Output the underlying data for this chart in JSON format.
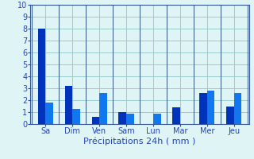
{
  "bar_data": [
    {
      "day": "Sa",
      "v1": 8.0,
      "v2": 1.8
    },
    {
      "day": "Dim",
      "v1": 3.2,
      "v2": 1.3
    },
    {
      "day": "Ven",
      "v1": 0.6,
      "v2": 2.6
    },
    {
      "day": "Sam",
      "v1": 1.0,
      "v2": 0.9
    },
    {
      "day": "Lun",
      "v1": 0.0,
      "v2": 0.9
    },
    {
      "day": "Mar",
      "v1": 1.4,
      "v2": 0.0
    },
    {
      "day": "Mer",
      "v1": 2.6,
      "v2": 2.8
    },
    {
      "day": "Jeu",
      "v1": 1.5,
      "v2": 2.6
    }
  ],
  "color1": "#0033bb",
  "color2": "#1177ee",
  "bg_color": "#dff5f5",
  "grid_color": "#99cccc",
  "xlabel": "Précipitations 24h ( mm )",
  "ylim": [
    0,
    10
  ],
  "yticks": [
    0,
    1,
    2,
    3,
    4,
    5,
    6,
    7,
    8,
    9,
    10
  ],
  "xlabel_color": "#2244bb",
  "tick_color": "#2244bb",
  "bar_width": 0.28,
  "tick_fontsize": 7.0,
  "xlabel_fontsize": 8.0,
  "spine_color": "#335599",
  "separator_color": "#446688"
}
